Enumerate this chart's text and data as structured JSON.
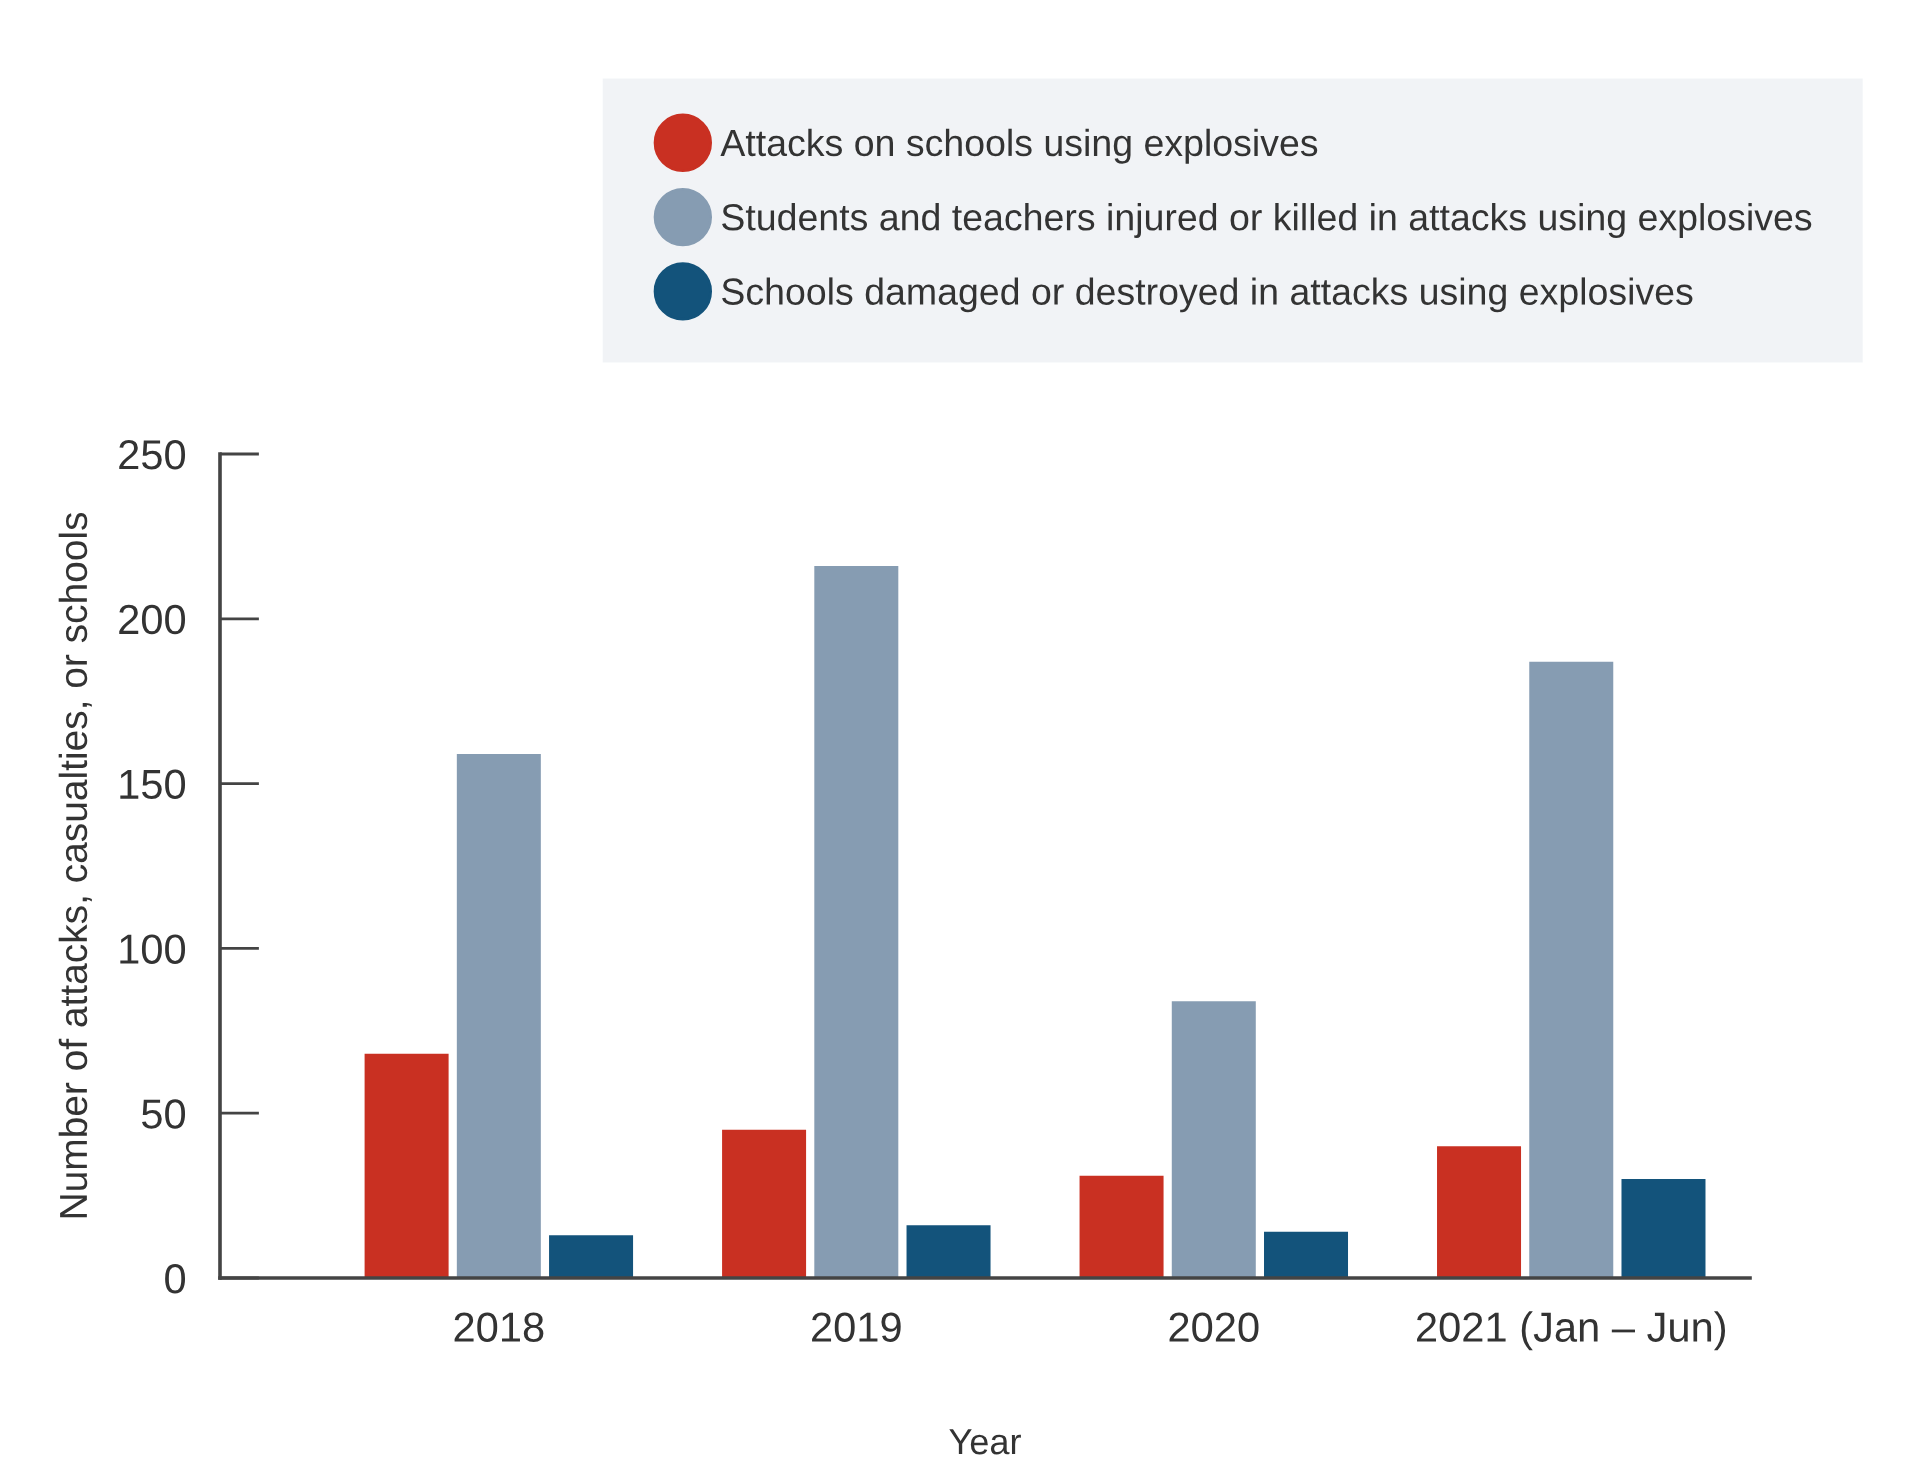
{
  "chart_data": {
    "type": "bar",
    "xlabel": "Year",
    "ylabel": "Number of attacks, casualties, or schools",
    "categories": [
      "2018",
      "2019",
      "2020",
      "2021 (Jan – Jun)"
    ],
    "series": [
      {
        "name": "Attacks on schools using explosives",
        "color": "#c93022",
        "values": [
          68,
          45,
          31,
          40
        ]
      },
      {
        "name": "Students and teachers injured or killed in attacks using explosives",
        "color": "#869cb2",
        "values": [
          159,
          216,
          84,
          187
        ]
      },
      {
        "name": "Schools damaged or destroyed in attacks using explosives",
        "color": "#13537b",
        "values": [
          13,
          16,
          14,
          30
        ]
      }
    ],
    "ylim": [
      0,
      250
    ],
    "yticks": [
      0,
      50,
      100,
      150,
      200,
      250
    ],
    "grid": false,
    "legend": "top right"
  }
}
